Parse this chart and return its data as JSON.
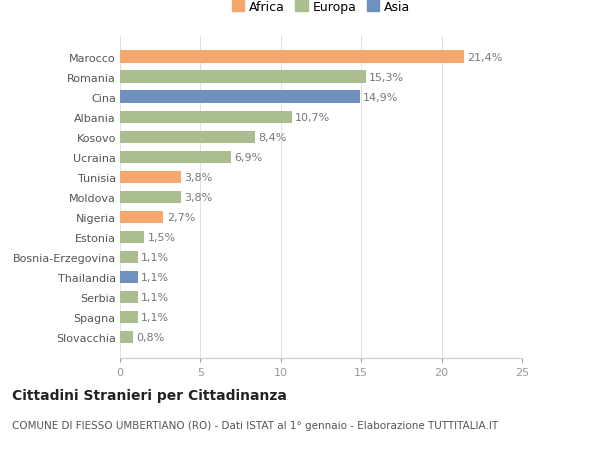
{
  "categories": [
    "Slovacchia",
    "Spagna",
    "Serbia",
    "Thailandia",
    "Bosnia-Erzegovina",
    "Estonia",
    "Nigeria",
    "Moldova",
    "Tunisia",
    "Ucraina",
    "Kosovo",
    "Albania",
    "Cina",
    "Romania",
    "Marocco"
  ],
  "values": [
    0.8,
    1.1,
    1.1,
    1.1,
    1.1,
    1.5,
    2.7,
    3.8,
    3.8,
    6.9,
    8.4,
    10.7,
    14.9,
    15.3,
    21.4
  ],
  "labels": [
    "0,8%",
    "1,1%",
    "1,1%",
    "1,1%",
    "1,1%",
    "1,5%",
    "2,7%",
    "3,8%",
    "3,8%",
    "6,9%",
    "8,4%",
    "10,7%",
    "14,9%",
    "15,3%",
    "21,4%"
  ],
  "continents": [
    "Europa",
    "Europa",
    "Europa",
    "Asia",
    "Europa",
    "Europa",
    "Africa",
    "Europa",
    "Africa",
    "Europa",
    "Europa",
    "Europa",
    "Asia",
    "Europa",
    "Africa"
  ],
  "colors": {
    "Africa": "#F5A86E",
    "Europa": "#ABBE90",
    "Asia": "#7090BE"
  },
  "legend_labels": [
    "Africa",
    "Europa",
    "Asia"
  ],
  "legend_colors": [
    "#F5A86E",
    "#ABBE90",
    "#7090BE"
  ],
  "title": "Cittadini Stranieri per Cittadinanza",
  "subtitle": "COMUNE DI FIESSO UMBERTIANO (RO) - Dati ISTAT al 1° gennaio - Elaborazione TUTTITALIA.IT",
  "xlim": [
    0,
    25
  ],
  "xticks": [
    0,
    5,
    10,
    15,
    20,
    25
  ],
  "background_color": "#ffffff",
  "bar_height": 0.62,
  "label_fontsize": 8,
  "tick_fontsize": 8,
  "ylabel_fontsize": 8,
  "title_fontsize": 10,
  "subtitle_fontsize": 7.5
}
